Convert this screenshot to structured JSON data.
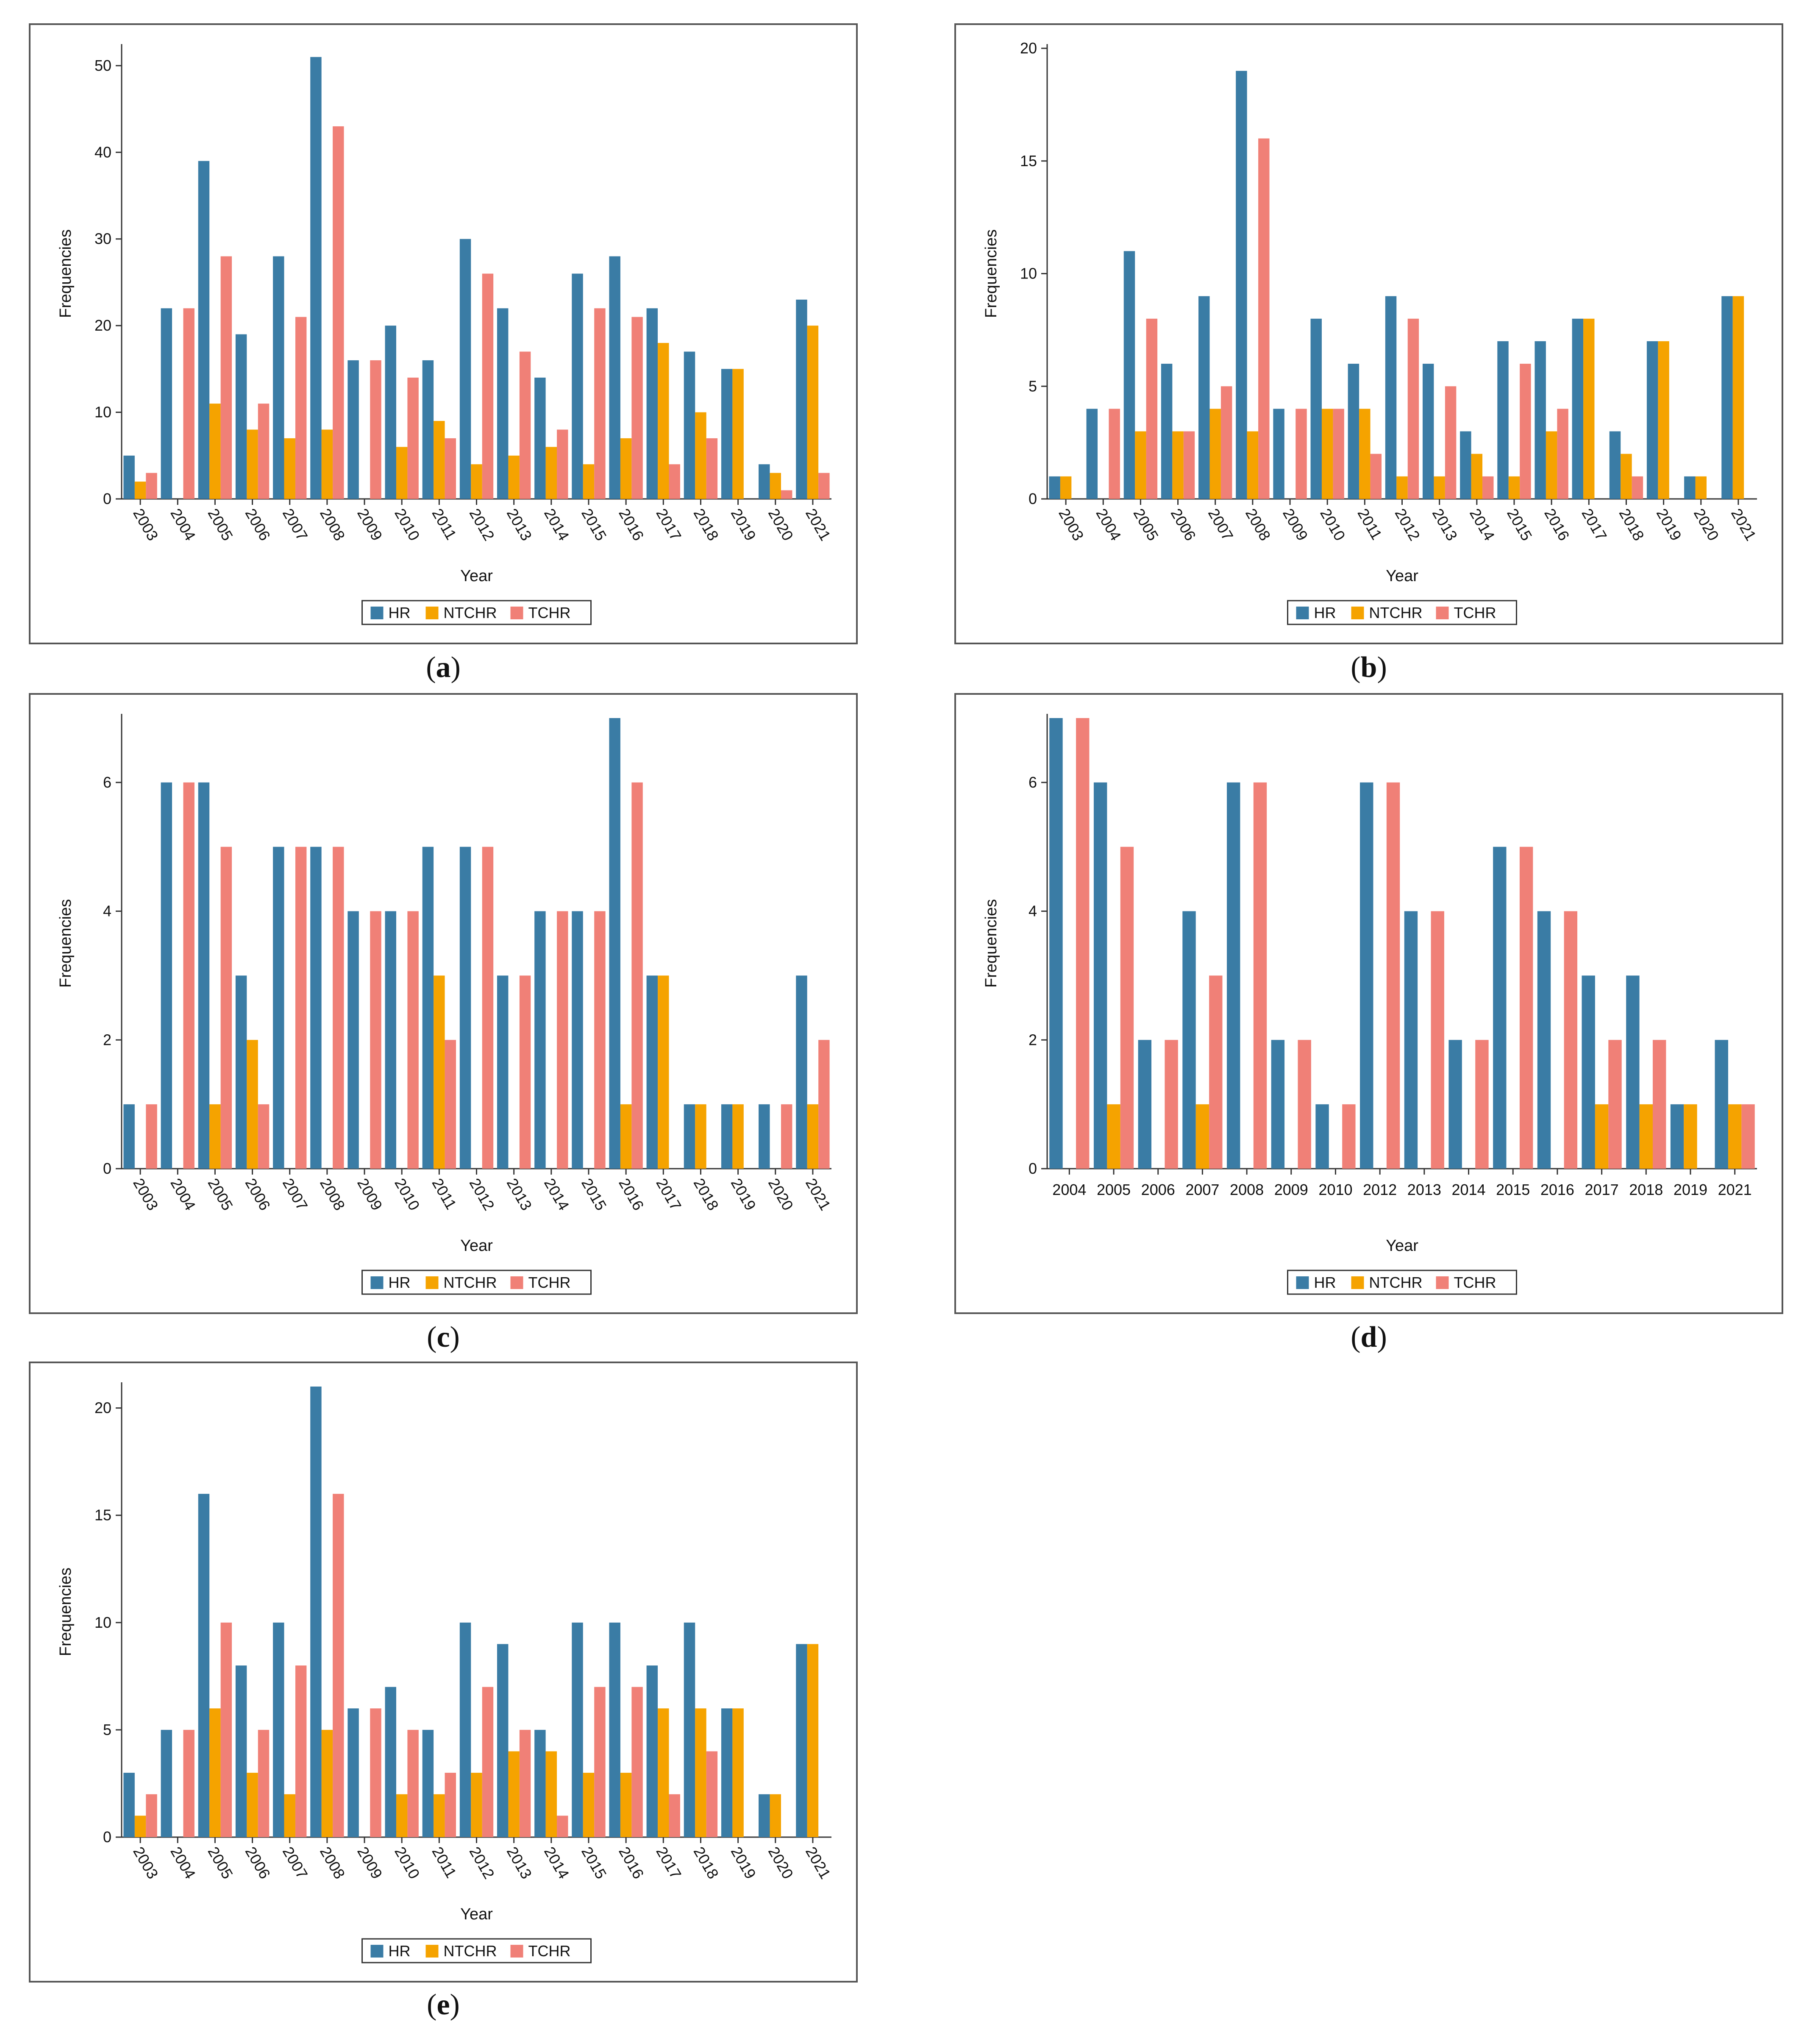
{
  "chart_data": [
    {
      "type": "bar",
      "panel_label": "a",
      "categories": [
        "2003",
        "2004",
        "2005",
        "2006",
        "2007",
        "2008",
        "2009",
        "2010",
        "2011",
        "2012",
        "2013",
        "2014",
        "2015",
        "2016",
        "2017",
        "2018",
        "2019",
        "2020",
        "2021"
      ],
      "series": [
        {
          "name": "HR",
          "values": [
            5,
            22,
            39,
            19,
            28,
            51,
            16,
            20,
            16,
            30,
            22,
            14,
            26,
            28,
            22,
            17,
            15,
            4,
            23
          ]
        },
        {
          "name": "NTCHR",
          "values": [
            2,
            0,
            11,
            8,
            7,
            8,
            0,
            6,
            9,
            4,
            5,
            6,
            4,
            7,
            18,
            10,
            15,
            3,
            20
          ]
        },
        {
          "name": "TCHR",
          "values": [
            3,
            22,
            28,
            11,
            21,
            43,
            16,
            14,
            7,
            26,
            17,
            8,
            22,
            21,
            4,
            7,
            0,
            1,
            3
          ]
        }
      ],
      "xlabel": "Year",
      "ylabel": "Frequencies",
      "ylim": [
        0,
        52
      ],
      "yticks": [
        0,
        10,
        20,
        30,
        40,
        50
      ],
      "rotate_labels": true
    },
    {
      "type": "bar",
      "panel_label": "b",
      "categories": [
        "2003",
        "2004",
        "2005",
        "2006",
        "2007",
        "2008",
        "2009",
        "2010",
        "2011",
        "2012",
        "2013",
        "2014",
        "2015",
        "2016",
        "2017",
        "2018",
        "2019",
        "2020",
        "2021"
      ],
      "series": [
        {
          "name": "HR",
          "values": [
            1,
            4,
            11,
            6,
            9,
            19,
            4,
            8,
            6,
            9,
            6,
            3,
            7,
            7,
            8,
            3,
            7,
            1,
            9
          ]
        },
        {
          "name": "NTCHR",
          "values": [
            1,
            0,
            3,
            3,
            4,
            3,
            0,
            4,
            4,
            1,
            1,
            2,
            1,
            3,
            8,
            2,
            7,
            1,
            9
          ]
        },
        {
          "name": "TCHR",
          "values": [
            0,
            4,
            8,
            3,
            5,
            16,
            4,
            4,
            2,
            8,
            5,
            1,
            6,
            4,
            0,
            1,
            0,
            0,
            0
          ]
        }
      ],
      "xlabel": "Year",
      "ylabel": "Frequencies",
      "ylim": [
        0,
        20
      ],
      "yticks": [
        0,
        5,
        10,
        15,
        20
      ],
      "rotate_labels": true
    },
    {
      "type": "bar",
      "panel_label": "c",
      "categories": [
        "2003",
        "2004",
        "2005",
        "2006",
        "2007",
        "2008",
        "2009",
        "2010",
        "2011",
        "2012",
        "2013",
        "2014",
        "2015",
        "2016",
        "2017",
        "2018",
        "2019",
        "2020",
        "2021"
      ],
      "series": [
        {
          "name": "HR",
          "values": [
            1,
            6,
            6,
            3,
            5,
            5,
            4,
            4,
            5,
            5,
            3,
            4,
            4,
            7,
            3,
            1,
            1,
            1,
            3
          ]
        },
        {
          "name": "NTCHR",
          "values": [
            0,
            0,
            1,
            2,
            0,
            0,
            0,
            0,
            3,
            0,
            0,
            0,
            0,
            1,
            3,
            1,
            1,
            0,
            1
          ]
        },
        {
          "name": "TCHR",
          "values": [
            1,
            6,
            5,
            1,
            5,
            5,
            4,
            4,
            2,
            5,
            3,
            4,
            4,
            6,
            0,
            0,
            0,
            1,
            2
          ]
        }
      ],
      "xlabel": "Year",
      "ylabel": "Frequencies",
      "ylim": [
        0,
        7
      ],
      "yticks": [
        0,
        2,
        4,
        6
      ],
      "rotate_labels": true
    },
    {
      "type": "bar",
      "panel_label": "d",
      "categories": [
        "2004",
        "2005",
        "2006",
        "2007",
        "2008",
        "2009",
        "2010",
        "2012",
        "2013",
        "2014",
        "2015",
        "2016",
        "2017",
        "2018",
        "2019",
        "2021"
      ],
      "series": [
        {
          "name": "HR",
          "values": [
            7,
            6,
            2,
            4,
            6,
            2,
            1,
            6,
            4,
            2,
            5,
            4,
            3,
            3,
            1,
            2
          ]
        },
        {
          "name": "NTCHR",
          "values": [
            0,
            1,
            0,
            1,
            0,
            0,
            0,
            0,
            0,
            0,
            0,
            0,
            1,
            1,
            1,
            1
          ]
        },
        {
          "name": "TCHR",
          "values": [
            7,
            5,
            2,
            3,
            6,
            2,
            1,
            6,
            4,
            2,
            5,
            4,
            2,
            2,
            0,
            1
          ]
        }
      ],
      "xlabel": "Year",
      "ylabel": "Frequencies",
      "ylim": [
        0,
        7
      ],
      "yticks": [
        0,
        2,
        4,
        6
      ],
      "rotate_labels": false
    },
    {
      "type": "bar",
      "panel_label": "e",
      "categories": [
        "2003",
        "2004",
        "2005",
        "2006",
        "2007",
        "2008",
        "2009",
        "2010",
        "2011",
        "2012",
        "2013",
        "2014",
        "2015",
        "2016",
        "2017",
        "2018",
        "2019",
        "2020",
        "2021"
      ],
      "series": [
        {
          "name": "HR",
          "values": [
            3,
            5,
            16,
            8,
            10,
            21,
            6,
            7,
            5,
            10,
            9,
            5,
            10,
            10,
            8,
            10,
            6,
            2,
            9
          ]
        },
        {
          "name": "NTCHR",
          "values": [
            1,
            0,
            6,
            3,
            2,
            5,
            0,
            2,
            2,
            3,
            4,
            4,
            3,
            3,
            6,
            6,
            6,
            2,
            9
          ]
        },
        {
          "name": "TCHR",
          "values": [
            2,
            5,
            10,
            5,
            8,
            16,
            6,
            5,
            3,
            7,
            5,
            1,
            7,
            7,
            2,
            4,
            0,
            0,
            0
          ]
        }
      ],
      "xlabel": "Year",
      "ylabel": "Frequencies",
      "ylim": [
        0,
        21
      ],
      "yticks": [
        0,
        5,
        10,
        15,
        20
      ],
      "rotate_labels": true
    }
  ],
  "colors": {
    "HR": "#3A7CA5",
    "NTCHR": "#F5A300",
    "TCHR": "#F08077",
    "axis": "#333333"
  },
  "captions": [
    "(a)",
    "(b)",
    "(c)",
    "(d)",
    "(e)"
  ],
  "caption_letters": [
    "a",
    "b",
    "c",
    "d",
    "e"
  ]
}
